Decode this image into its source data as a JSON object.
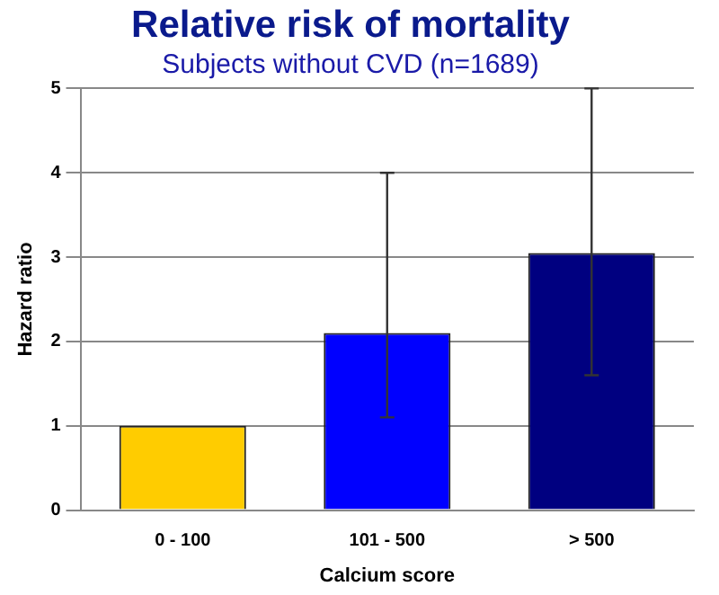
{
  "chart_data": {
    "type": "bar",
    "title": "Relative risk of mortality",
    "subtitle": "Subjects without CVD (n=1689)",
    "xlabel": "Calcium score",
    "ylabel": "Hazard ratio",
    "categories": [
      "0 - 100",
      "101 - 500",
      "> 500"
    ],
    "values": [
      1.0,
      2.1,
      3.05
    ],
    "colors": [
      "#ffcc00",
      "#0000ff",
      "#000080"
    ],
    "errors": [
      null,
      [
        1.1,
        4.0
      ],
      [
        1.6,
        5.0
      ]
    ],
    "ylim": [
      0,
      5
    ],
    "yticks": [
      0,
      1,
      2,
      3,
      4,
      5
    ],
    "grid": "y",
    "legend": false
  }
}
